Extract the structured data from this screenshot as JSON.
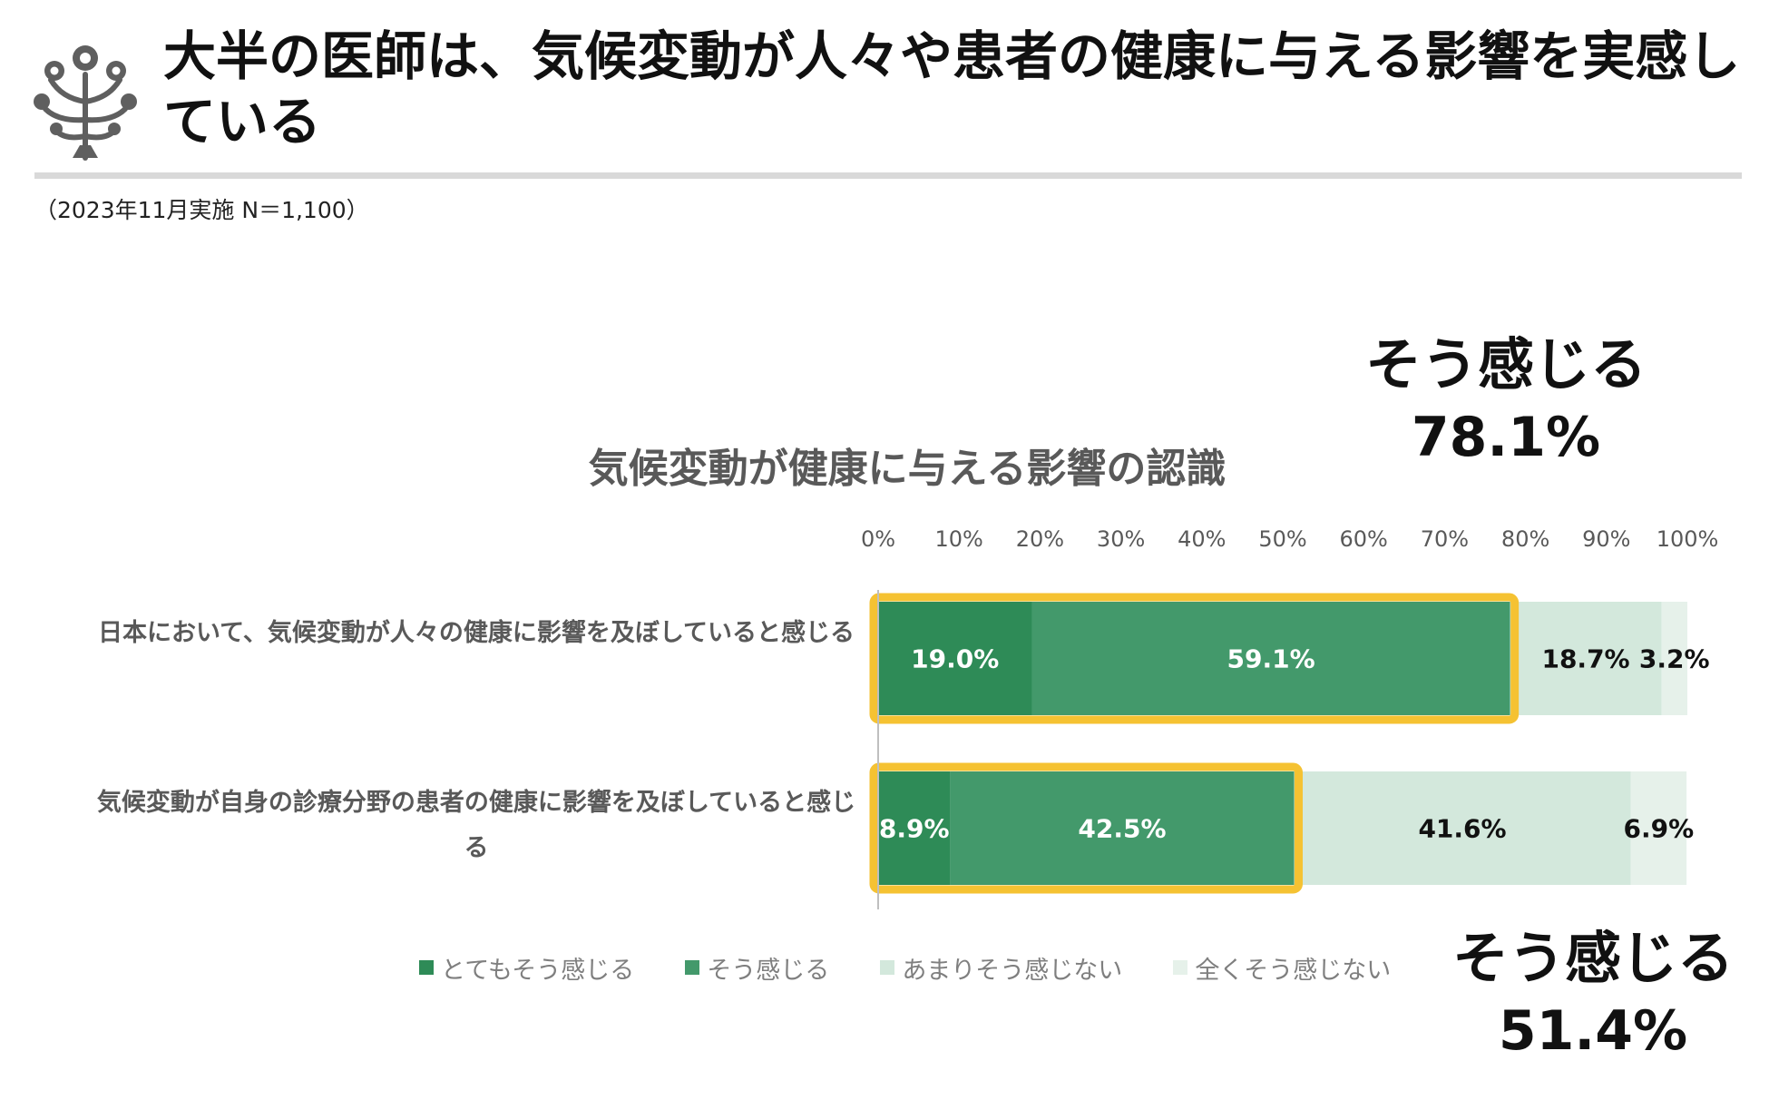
{
  "header": {
    "title": "大半の医師は、気候変動が人々や患者の健康に与える影響を実感している",
    "survey_note": "（2023年11月実施 N＝1,100）"
  },
  "callouts": [
    {
      "label": "そう感じる",
      "value": "78.1%"
    },
    {
      "label": "そう感じる",
      "value": "51.4%"
    }
  ],
  "chart_data": {
    "type": "bar",
    "orientation": "horizontal",
    "stacked": true,
    "title": "気候変動が健康に与える影響の認識",
    "categories": [
      "日本において、気候変動が人々の健康に影響を及ぼしていると感じる",
      "気候変動が自身の診療分野の患者の健康に影響を及ぼしていると感じる"
    ],
    "series": [
      {
        "name": "とてもそう感じる",
        "values": [
          19.0,
          8.9
        ],
        "labels": [
          "19.0%",
          "8.9%"
        ],
        "color": "#2e8b57"
      },
      {
        "name": "そう感じる",
        "values": [
          59.1,
          42.5
        ],
        "labels": [
          "59.1%",
          "42.5%"
        ],
        "color": "#43996b"
      },
      {
        "name": "あまりそう感じない",
        "values": [
          18.7,
          41.6
        ],
        "labels": [
          "18.7%",
          "41.6%"
        ],
        "color": "#d3e8dc"
      },
      {
        "name": "全くそう感じない",
        "values": [
          3.2,
          6.9
        ],
        "labels": [
          "3.2%",
          "6.9%"
        ],
        "color": "#e6f1ea"
      }
    ],
    "xlim": [
      0,
      100
    ],
    "ticks": [
      "0%",
      "10%",
      "20%",
      "30%",
      "40%",
      "50%",
      "60%",
      "70%",
      "80%",
      "90%",
      "100%"
    ],
    "highlight_color": "#f5c232",
    "legend_position": "bottom",
    "grid": false
  }
}
